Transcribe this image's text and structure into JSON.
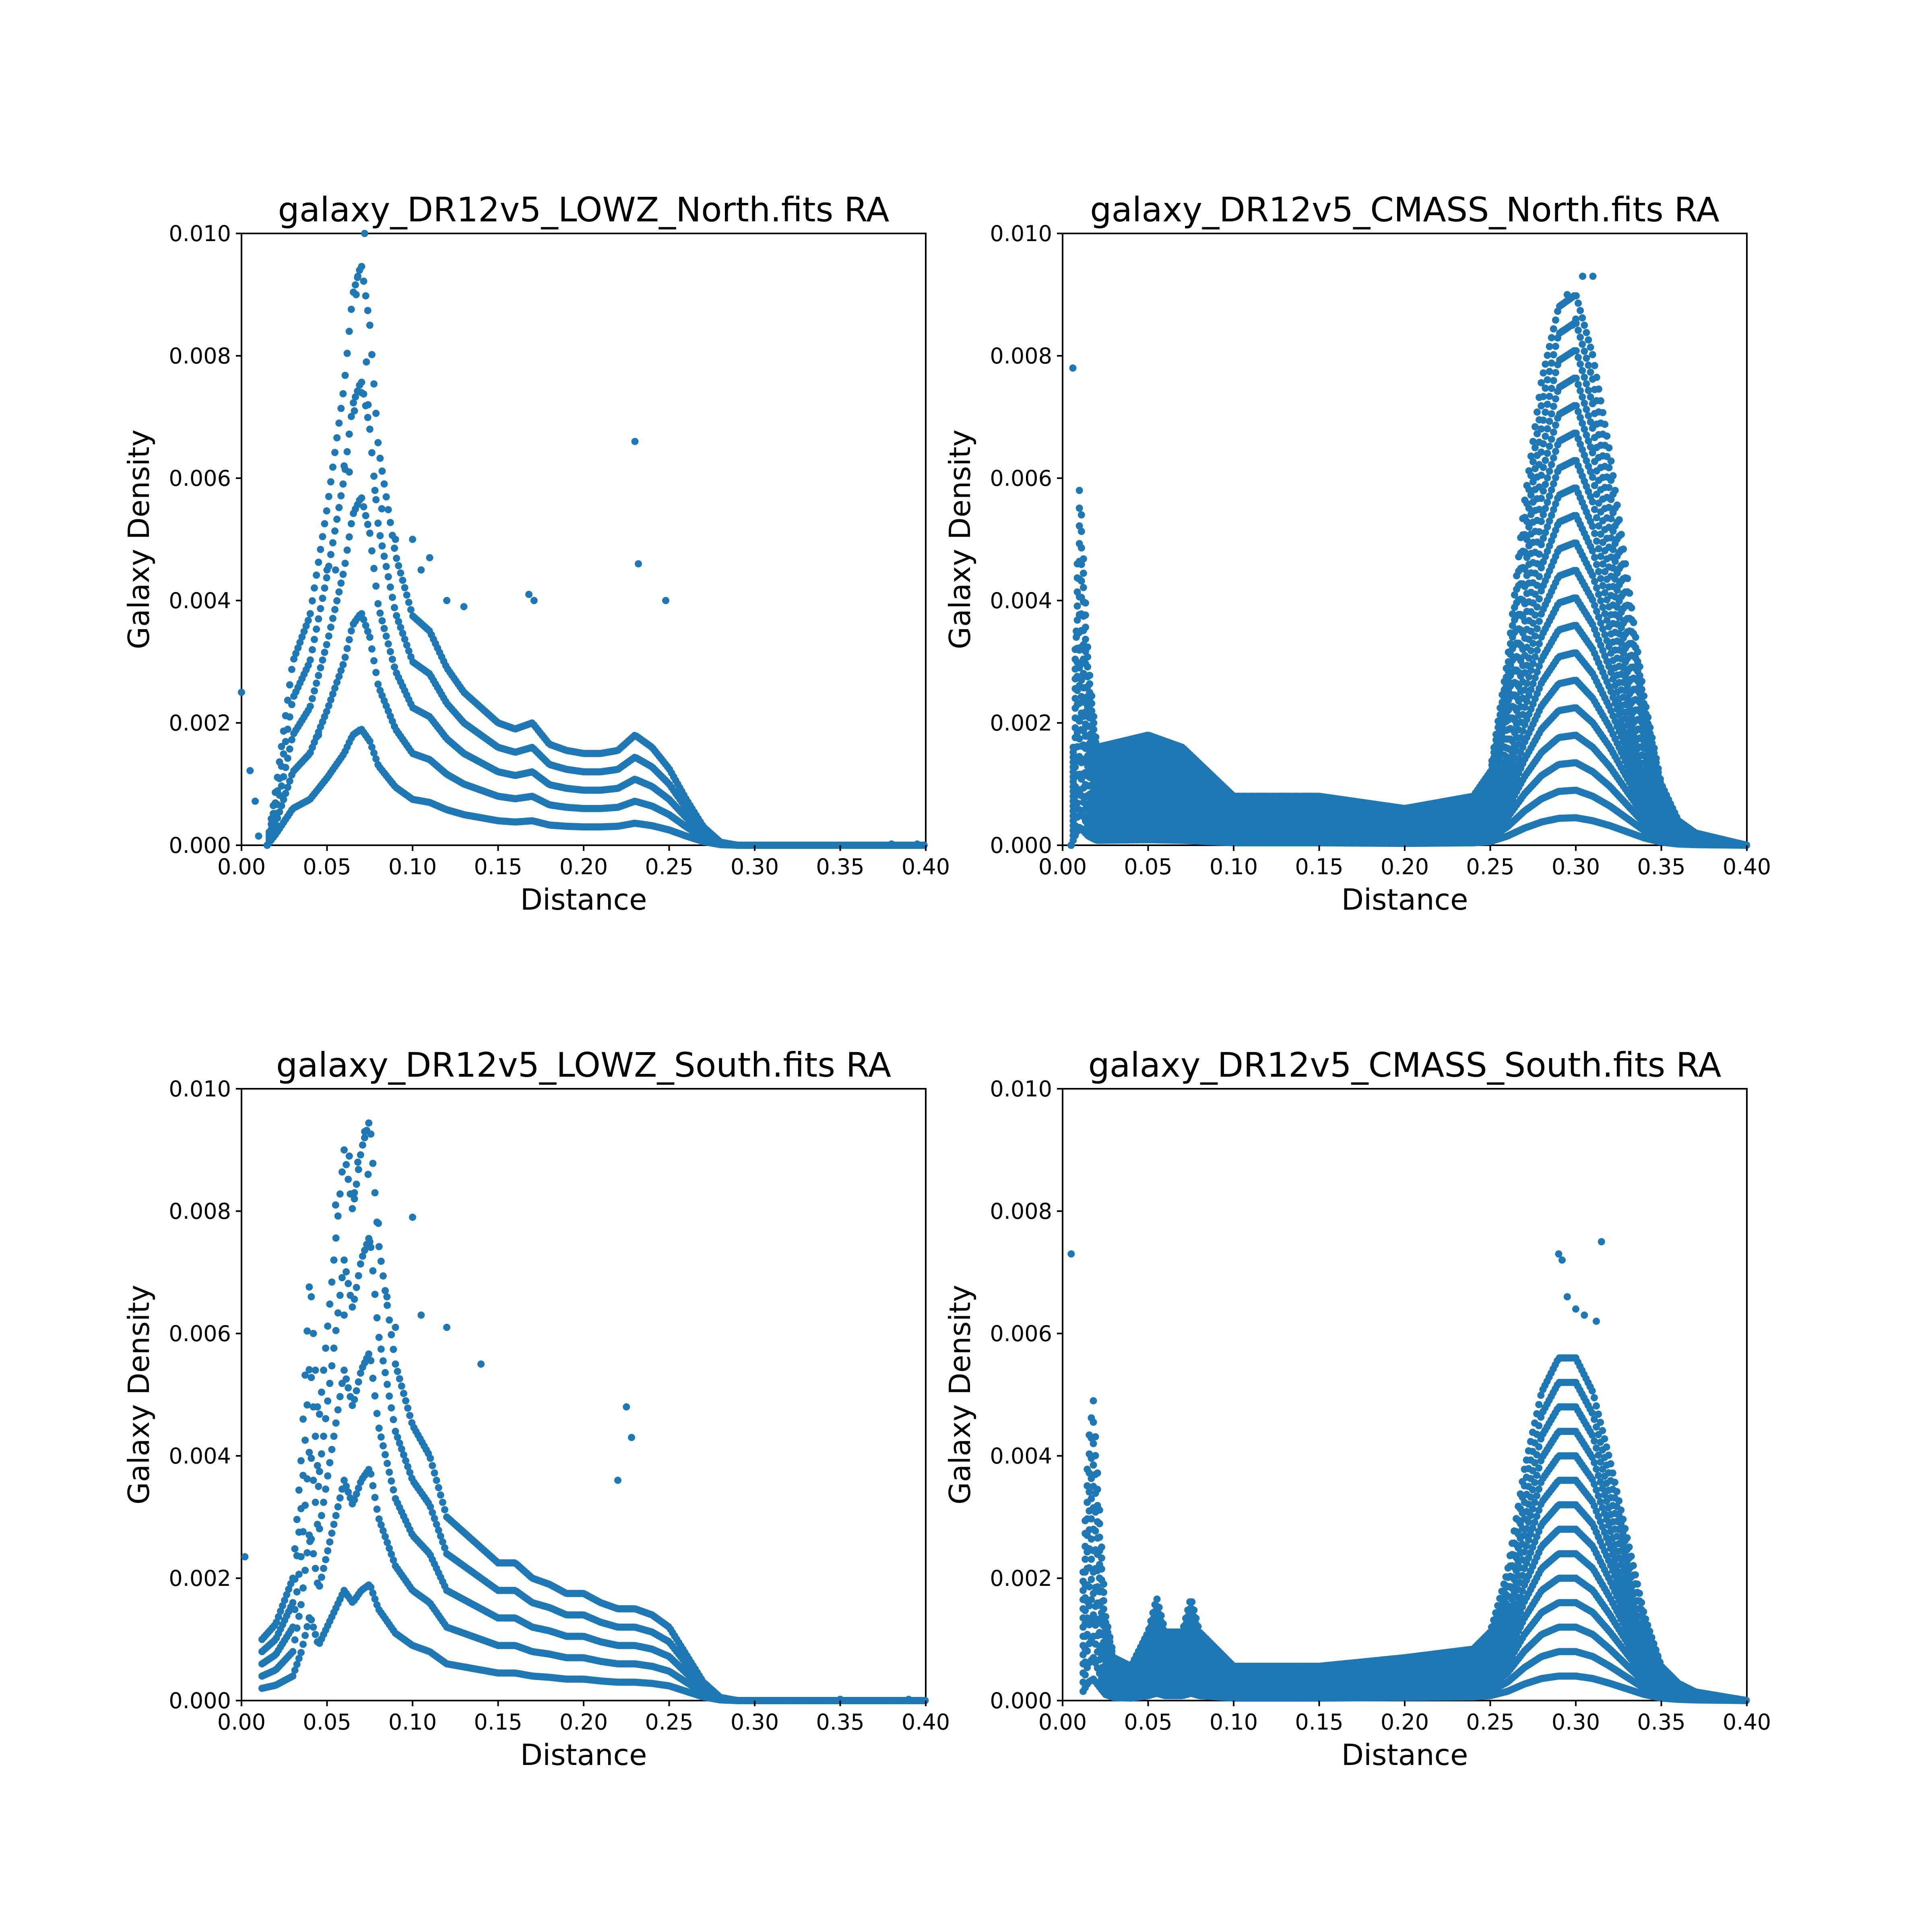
{
  "figure": {
    "point_color": "#1f77b4"
  },
  "chart_data": [
    {
      "type": "scatter",
      "title": "galaxy_DR12v5_LOWZ_North.fits RA",
      "xlabel": "Distance",
      "ylabel": "Galaxy Density",
      "xlim": [
        0.0,
        0.4
      ],
      "ylim": [
        0.0,
        0.01
      ],
      "xticks": [
        "0.00",
        "0.05",
        "0.10",
        "0.15",
        "0.20",
        "0.25",
        "0.30",
        "0.35",
        "0.40"
      ],
      "yticks": [
        "0.000",
        "0.002",
        "0.004",
        "0.006",
        "0.008",
        "0.010"
      ],
      "grid": false,
      "legend": "none",
      "profile": {
        "x": [
          0.015,
          0.02,
          0.03,
          0.04,
          0.05,
          0.06,
          0.065,
          0.07,
          0.075,
          0.08,
          0.09,
          0.1,
          0.11,
          0.12,
          0.13,
          0.14,
          0.15,
          0.16,
          0.17,
          0.18,
          0.19,
          0.2,
          0.21,
          0.22,
          0.23,
          0.24,
          0.25,
          0.26,
          0.27,
          0.28,
          0.29,
          0.3,
          0.4
        ],
        "y": [
          0.0,
          0.00018,
          0.0006,
          0.00075,
          0.0011,
          0.0015,
          0.0018,
          0.0019,
          0.0017,
          0.0013,
          0.00095,
          0.00075,
          0.0007,
          0.00058,
          0.0005,
          0.00045,
          0.0004,
          0.00038,
          0.0004,
          0.00033,
          0.00031,
          0.0003,
          0.0003,
          0.00031,
          0.00036,
          0.00032,
          0.00025,
          0.00015,
          6e-05,
          1e-05,
          0.0,
          0.0,
          0.0
        ]
      },
      "multiples": [
        1,
        2,
        3,
        4,
        5
      ],
      "outliers": [
        {
          "x": 0.0,
          "y": 0.0025
        },
        {
          "x": 0.005,
          "y": 0.00122
        },
        {
          "x": 0.008,
          "y": 0.00072
        },
        {
          "x": 0.01,
          "y": 0.00015
        },
        {
          "x": 0.045,
          "y": 0.0018
        },
        {
          "x": 0.05,
          "y": 0.0045
        },
        {
          "x": 0.055,
          "y": 0.0045
        },
        {
          "x": 0.06,
          "y": 0.0062
        },
        {
          "x": 0.063,
          "y": 0.0061
        },
        {
          "x": 0.066,
          "y": 0.0071
        },
        {
          "x": 0.067,
          "y": 0.009
        },
        {
          "x": 0.068,
          "y": 0.0093
        },
        {
          "x": 0.069,
          "y": 0.0094
        },
        {
          "x": 0.07,
          "y": 0.0074
        },
        {
          "x": 0.072,
          "y": 0.01
        },
        {
          "x": 0.073,
          "y": 0.0079
        },
        {
          "x": 0.074,
          "y": 0.0072
        },
        {
          "x": 0.078,
          "y": 0.0058
        },
        {
          "x": 0.082,
          "y": 0.0055
        },
        {
          "x": 0.09,
          "y": 0.005
        },
        {
          "x": 0.1,
          "y": 0.005
        },
        {
          "x": 0.105,
          "y": 0.0045
        },
        {
          "x": 0.11,
          "y": 0.0047
        },
        {
          "x": 0.12,
          "y": 0.004
        },
        {
          "x": 0.13,
          "y": 0.0039
        },
        {
          "x": 0.168,
          "y": 0.0041
        },
        {
          "x": 0.171,
          "y": 0.004
        },
        {
          "x": 0.23,
          "y": 0.0066
        },
        {
          "x": 0.232,
          "y": 0.0046
        },
        {
          "x": 0.248,
          "y": 0.004
        },
        {
          "x": 0.38,
          "y": 2e-05
        },
        {
          "x": 0.395,
          "y": 2e-05
        }
      ]
    },
    {
      "type": "scatter",
      "title": "galaxy_DR12v5_CMASS_North.fits RA",
      "xlabel": "Distance",
      "ylabel": "Galaxy Density",
      "xlim": [
        0.0,
        0.4
      ],
      "ylim": [
        0.0,
        0.01
      ],
      "xticks": [
        "0.00",
        "0.05",
        "0.10",
        "0.15",
        "0.20",
        "0.25",
        "0.30",
        "0.35",
        "0.40"
      ],
      "yticks": [
        "0.000",
        "0.002",
        "0.004",
        "0.006",
        "0.008",
        "0.010"
      ],
      "grid": false,
      "legend": "none",
      "profile": {
        "x": [
          0.005,
          0.008,
          0.01,
          0.015,
          0.02,
          0.05,
          0.07,
          0.1,
          0.15,
          0.2,
          0.24,
          0.25,
          0.26,
          0.27,
          0.28,
          0.29,
          0.3,
          0.31,
          0.32,
          0.33,
          0.34,
          0.35,
          0.36,
          0.37,
          0.4
        ],
        "y": [
          0.0,
          0.0002,
          0.0003,
          0.00015,
          8e-05,
          9e-05,
          8e-05,
          4e-05,
          4e-05,
          3e-05,
          4e-05,
          6e-05,
          0.00015,
          0.00028,
          0.00038,
          0.00044,
          0.00045,
          0.0004,
          0.00032,
          0.00022,
          0.00012,
          5e-05,
          2e-05,
          1e-05,
          0.0
        ]
      },
      "multiples": [
        1,
        2,
        3,
        4,
        5,
        6,
        7,
        8,
        9,
        10,
        11,
        12,
        13,
        14,
        15,
        16,
        17,
        18,
        19,
        20
      ],
      "outliers": [
        {
          "x": 0.006,
          "y": 0.0078
        },
        {
          "x": 0.008,
          "y": 0.0035
        },
        {
          "x": 0.008,
          "y": 0.0034
        },
        {
          "x": 0.295,
          "y": 0.009
        },
        {
          "x": 0.3,
          "y": 0.0086
        },
        {
          "x": 0.304,
          "y": 0.0093
        },
        {
          "x": 0.31,
          "y": 0.0093
        },
        {
          "x": 0.298,
          "y": 0.0085
        },
        {
          "x": 0.292,
          "y": 0.0084
        }
      ]
    },
    {
      "type": "scatter",
      "title": "galaxy_DR12v5_LOWZ_South.fits RA",
      "xlabel": "Distance",
      "ylabel": "Galaxy Density",
      "xlim": [
        0.0,
        0.4
      ],
      "ylim": [
        0.0,
        0.01
      ],
      "xticks": [
        "0.00",
        "0.05",
        "0.10",
        "0.15",
        "0.20",
        "0.25",
        "0.30",
        "0.35",
        "0.40"
      ],
      "yticks": [
        "0.000",
        "0.002",
        "0.004",
        "0.006",
        "0.008",
        "0.010"
      ],
      "grid": false,
      "legend": "none",
      "profile": {
        "x": [
          0.012,
          0.02,
          0.03,
          0.035,
          0.04,
          0.045,
          0.05,
          0.06,
          0.065,
          0.07,
          0.075,
          0.08,
          0.09,
          0.1,
          0.11,
          0.12,
          0.13,
          0.14,
          0.15,
          0.16,
          0.17,
          0.18,
          0.19,
          0.2,
          0.21,
          0.22,
          0.23,
          0.24,
          0.25,
          0.26,
          0.27,
          0.28,
          0.29,
          0.3,
          0.4
        ],
        "y": [
          0.0002,
          0.00025,
          0.0004,
          0.0008,
          0.0014,
          0.0009,
          0.0012,
          0.0018,
          0.0016,
          0.0018,
          0.0019,
          0.0015,
          0.0011,
          0.0009,
          0.0008,
          0.0006,
          0.00055,
          0.0005,
          0.00045,
          0.00045,
          0.0004,
          0.00038,
          0.00035,
          0.00035,
          0.00032,
          0.0003,
          0.0003,
          0.00028,
          0.00024,
          0.00015,
          6e-05,
          1e-05,
          0.0,
          0.0,
          0.0
        ]
      },
      "multiples": [
        1,
        2,
        3,
        4,
        5
      ],
      "outliers": [
        {
          "x": 0.002,
          "y": 0.00235
        },
        {
          "x": 0.04,
          "y": 0.0026
        },
        {
          "x": 0.045,
          "y": 0.0035
        },
        {
          "x": 0.055,
          "y": 0.0081
        },
        {
          "x": 0.06,
          "y": 0.0063
        },
        {
          "x": 0.063,
          "y": 0.0089
        },
        {
          "x": 0.066,
          "y": 0.0083
        },
        {
          "x": 0.068,
          "y": 0.0088
        },
        {
          "x": 0.072,
          "y": 0.0093
        },
        {
          "x": 0.074,
          "y": 0.0086
        },
        {
          "x": 0.075,
          "y": 0.0075
        },
        {
          "x": 0.08,
          "y": 0.0078
        },
        {
          "x": 0.085,
          "y": 0.0066
        },
        {
          "x": 0.09,
          "y": 0.0061
        },
        {
          "x": 0.1,
          "y": 0.0079
        },
        {
          "x": 0.105,
          "y": 0.0063
        },
        {
          "x": 0.12,
          "y": 0.0061
        },
        {
          "x": 0.14,
          "y": 0.0055
        },
        {
          "x": 0.22,
          "y": 0.0036
        },
        {
          "x": 0.225,
          "y": 0.0048
        },
        {
          "x": 0.228,
          "y": 0.0043
        },
        {
          "x": 0.35,
          "y": 2e-05
        },
        {
          "x": 0.39,
          "y": 2e-05
        }
      ]
    },
    {
      "type": "scatter",
      "title": "galaxy_DR12v5_CMASS_South.fits RA",
      "xlabel": "Distance",
      "ylabel": "Galaxy Density",
      "xlim": [
        0.0,
        0.4
      ],
      "ylim": [
        0.0,
        0.01
      ],
      "xticks": [
        "0.00",
        "0.05",
        "0.10",
        "0.15",
        "0.20",
        "0.25",
        "0.30",
        "0.35",
        "0.40"
      ],
      "yticks": [
        "0.000",
        "0.002",
        "0.004",
        "0.006",
        "0.008",
        "0.010"
      ],
      "grid": false,
      "legend": "none",
      "profile": {
        "x": [
          0.012,
          0.015,
          0.018,
          0.02,
          0.025,
          0.03,
          0.04,
          0.05,
          0.055,
          0.06,
          0.07,
          0.075,
          0.08,
          0.1,
          0.15,
          0.2,
          0.24,
          0.25,
          0.26,
          0.27,
          0.28,
          0.29,
          0.3,
          0.31,
          0.32,
          0.33,
          0.34,
          0.35,
          0.36,
          0.37,
          0.4
        ],
        "y": [
          0.00015,
          0.0003,
          0.00035,
          0.00028,
          0.0001,
          5e-05,
          4e-05,
          8e-05,
          0.00012,
          8e-05,
          8e-05,
          0.00012,
          8e-05,
          4e-05,
          4e-05,
          5e-05,
          6e-05,
          8e-05,
          0.00015,
          0.00027,
          0.00036,
          0.0004,
          0.0004,
          0.00036,
          0.00028,
          0.00019,
          0.0001,
          4e-05,
          2e-05,
          1e-05,
          0.0
        ]
      },
      "multiples": [
        1,
        2,
        3,
        4,
        5,
        6,
        7,
        8,
        9,
        10,
        11,
        12,
        13,
        14
      ],
      "outliers": [
        {
          "x": 0.005,
          "y": 0.0073
        },
        {
          "x": 0.056,
          "y": 0.0002
        },
        {
          "x": 0.075,
          "y": 0.0002
        },
        {
          "x": 0.29,
          "y": 0.0073
        },
        {
          "x": 0.292,
          "y": 0.0072
        },
        {
          "x": 0.295,
          "y": 0.0066
        },
        {
          "x": 0.3,
          "y": 0.0064
        },
        {
          "x": 0.305,
          "y": 0.0063
        },
        {
          "x": 0.315,
          "y": 0.0075
        },
        {
          "x": 0.312,
          "y": 0.0062
        }
      ]
    }
  ]
}
